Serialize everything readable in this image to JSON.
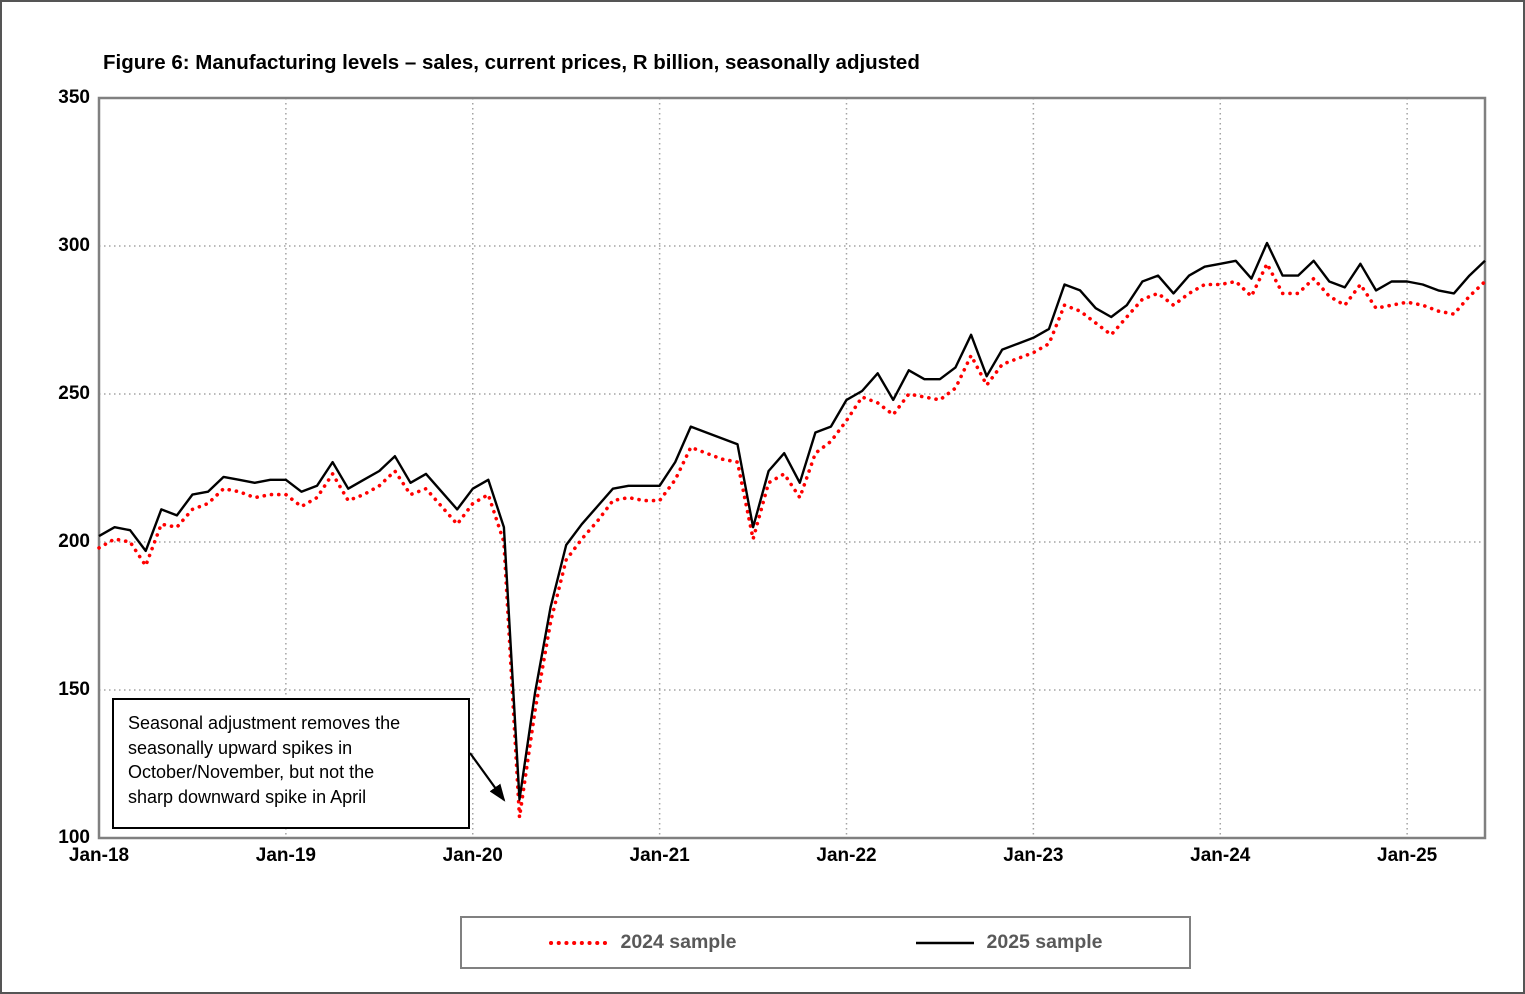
{
  "title": "Figure 6: Manufacturing levels – sales, current prices, R billion, seasonally adjusted",
  "annotation": {
    "lines": [
      "Seasonal adjustment removes the",
      "seasonally upward spikes in",
      "October/November, but not the",
      "sharp downward spike in April"
    ]
  },
  "legend": {
    "items": [
      {
        "label": "2024 sample",
        "color": "#ff0000",
        "line_style": "dotted"
      },
      {
        "label": "2025 sample",
        "color": "#000000",
        "line_style": "solid"
      }
    ]
  },
  "colors": {
    "series_2024": "#ff0000",
    "series_2025": "#000000",
    "gridline": "#a3a3a3",
    "plot_border": "#808080",
    "legend_text": "#595959",
    "axis_text": "#000000"
  },
  "chart_data": {
    "type": "line",
    "title": "Figure 6: Manufacturing levels – sales, current prices, R billion, seasonally adjusted",
    "x_frequency": "monthly",
    "x_start": "Jan-18",
    "x_end": "Jun-25",
    "x_tick_labels": [
      "Jan-18",
      "Jan-19",
      "Jan-20",
      "Jan-21",
      "Jan-22",
      "Jan-23",
      "Jan-24",
      "Jan-25"
    ],
    "x_tick_month_indices": [
      0,
      12,
      24,
      36,
      48,
      60,
      72,
      84
    ],
    "ylim": [
      100,
      350
    ],
    "y_ticks": [
      100,
      150,
      200,
      250,
      300,
      350
    ],
    "grid": "dotted",
    "legend_position": "bottom",
    "series": [
      {
        "name": "2024 sample",
        "style": "dotted",
        "color": "#ff0000",
        "values": [
          198,
          201,
          200,
          192,
          206,
          205,
          211,
          213,
          218,
          217,
          215,
          216,
          216,
          212,
          215,
          223,
          214,
          216,
          219,
          224,
          216,
          218,
          212,
          206,
          213,
          216,
          200,
          107,
          143,
          173,
          194,
          201,
          207,
          214,
          215,
          214,
          214,
          221,
          232,
          230,
          228,
          227,
          201,
          220,
          223,
          215,
          230,
          234,
          241,
          249,
          247,
          243,
          250,
          249,
          248,
          252,
          263,
          253,
          260,
          262,
          264,
          267,
          280,
          278,
          274,
          270,
          276,
          282,
          284,
          280,
          284,
          287,
          287,
          288,
          283,
          294,
          284,
          284,
          289,
          283,
          280,
          287,
          279,
          280,
          281,
          280,
          278,
          277,
          283,
          288
        ]
      },
      {
        "name": "2025 sample",
        "style": "solid",
        "color": "#000000",
        "values": [
          202,
          205,
          204,
          197,
          211,
          209,
          216,
          217,
          222,
          221,
          220,
          221,
          221,
          217,
          219,
          227,
          218,
          221,
          224,
          229,
          220,
          223,
          217,
          211,
          218,
          221,
          205,
          113,
          149,
          178,
          199,
          206,
          212,
          218,
          219,
          219,
          219,
          227,
          239,
          237,
          235,
          233,
          205,
          224,
          230,
          220,
          237,
          239,
          248,
          251,
          257,
          248,
          258,
          255,
          255,
          259,
          270,
          256,
          265,
          267,
          269,
          272,
          287,
          285,
          279,
          276,
          280,
          288,
          290,
          284,
          290,
          293,
          294,
          295,
          289,
          301,
          290,
          290,
          295,
          288,
          286,
          294,
          285,
          288,
          288,
          287,
          285,
          284,
          290,
          295
        ]
      }
    ]
  }
}
